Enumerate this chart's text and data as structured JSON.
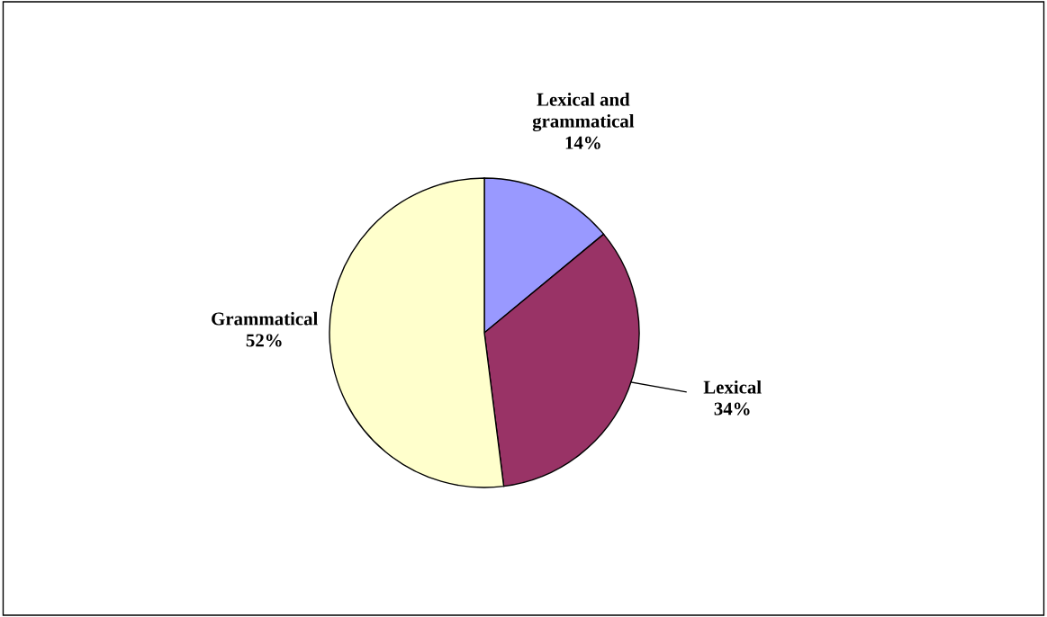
{
  "chart_data": {
    "type": "pie",
    "categories": [
      "Lexical and\ngrammatical",
      "Lexical",
      "Grammatical"
    ],
    "values": [
      14,
      34,
      52
    ],
    "value_labels": [
      "14%",
      "34%",
      "52%"
    ],
    "colors": [
      "#9999ff",
      "#993366",
      "#ffffcc"
    ],
    "legend": false
  }
}
